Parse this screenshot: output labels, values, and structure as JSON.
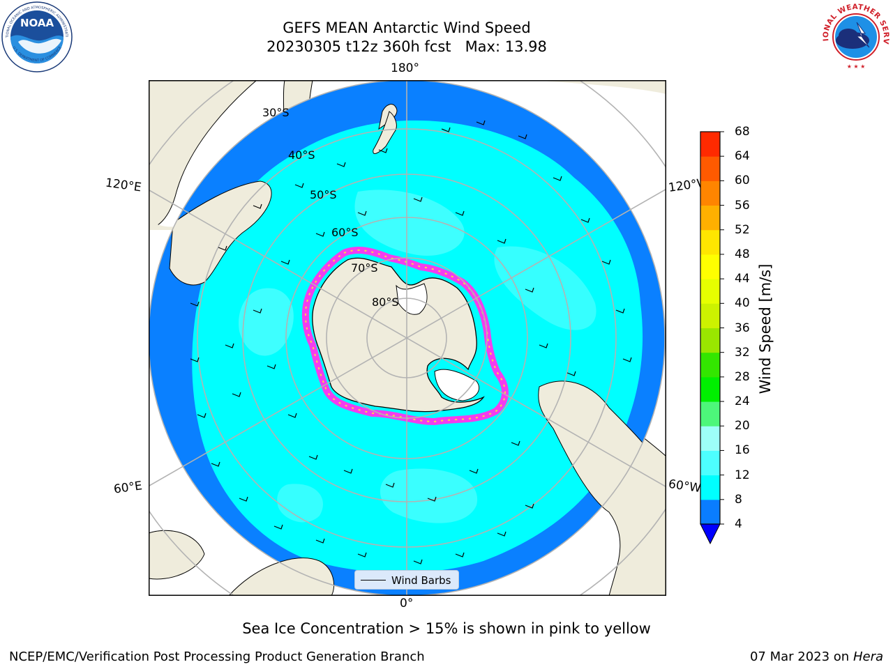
{
  "header": {
    "title": "GEFS MEAN Antarctic Wind Speed",
    "subtitle": "20230305 t12z 360h fcst   Max: 13.98"
  },
  "logos": {
    "left": {
      "icon": "noaa-logo",
      "text": "NOAA"
    },
    "right": {
      "icon": "national-weather-service-logo",
      "text": "NATIONAL WEATHER SERVICE"
    }
  },
  "map": {
    "projection": "south-polar-stereographic",
    "longitude_labels": {
      "top": "180°",
      "bottom": "0°",
      "upper_left": "120°E",
      "upper_right": "120°W",
      "lower_left": "60°E",
      "lower_right": "60°W"
    },
    "latitude_labels": [
      "30°S",
      "40°S",
      "50°S",
      "60°S",
      "70°S",
      "80°S"
    ],
    "legend": {
      "label": "Wind Barbs"
    },
    "colors": {
      "ocean_low": "#0a80ff",
      "ocean_mid": "#00ffff",
      "ocean_high": "#4dffff",
      "land": "#efecdc",
      "ice": "#ff33ee",
      "ice_edge": "#ffe633",
      "grid": "#b3b3b3"
    }
  },
  "colorbar": {
    "label": "Wind Speed [m/s]",
    "ticks": [
      "4",
      "8",
      "12",
      "16",
      "20",
      "24",
      "28",
      "32",
      "36",
      "40",
      "44",
      "48",
      "52",
      "56",
      "60",
      "64",
      "68"
    ],
    "levels": [
      4,
      8,
      12,
      16,
      20,
      24,
      28,
      32,
      36,
      40,
      44,
      48,
      52,
      56,
      60,
      64,
      68
    ],
    "colors": [
      "#0a7dff",
      "#00ffff",
      "#4dffff",
      "#9dfff8",
      "#4df77a",
      "#00ef00",
      "#33e600",
      "#9ae600",
      "#ccf200",
      "#e6ff00",
      "#ffff00",
      "#ffe600",
      "#ffb000",
      "#ff8500",
      "#ff5a00",
      "#ff2a00"
    ],
    "under_color": "#0000ff"
  },
  "annotations": {
    "sea_ice_note": "Sea Ice Concentration > 15% is shown in pink to yellow"
  },
  "footer": {
    "left": "NCEP/EMC/Verification Post Processing Product Generation Branch",
    "date": "07 Mar 2023 on",
    "machine": "Hera"
  }
}
